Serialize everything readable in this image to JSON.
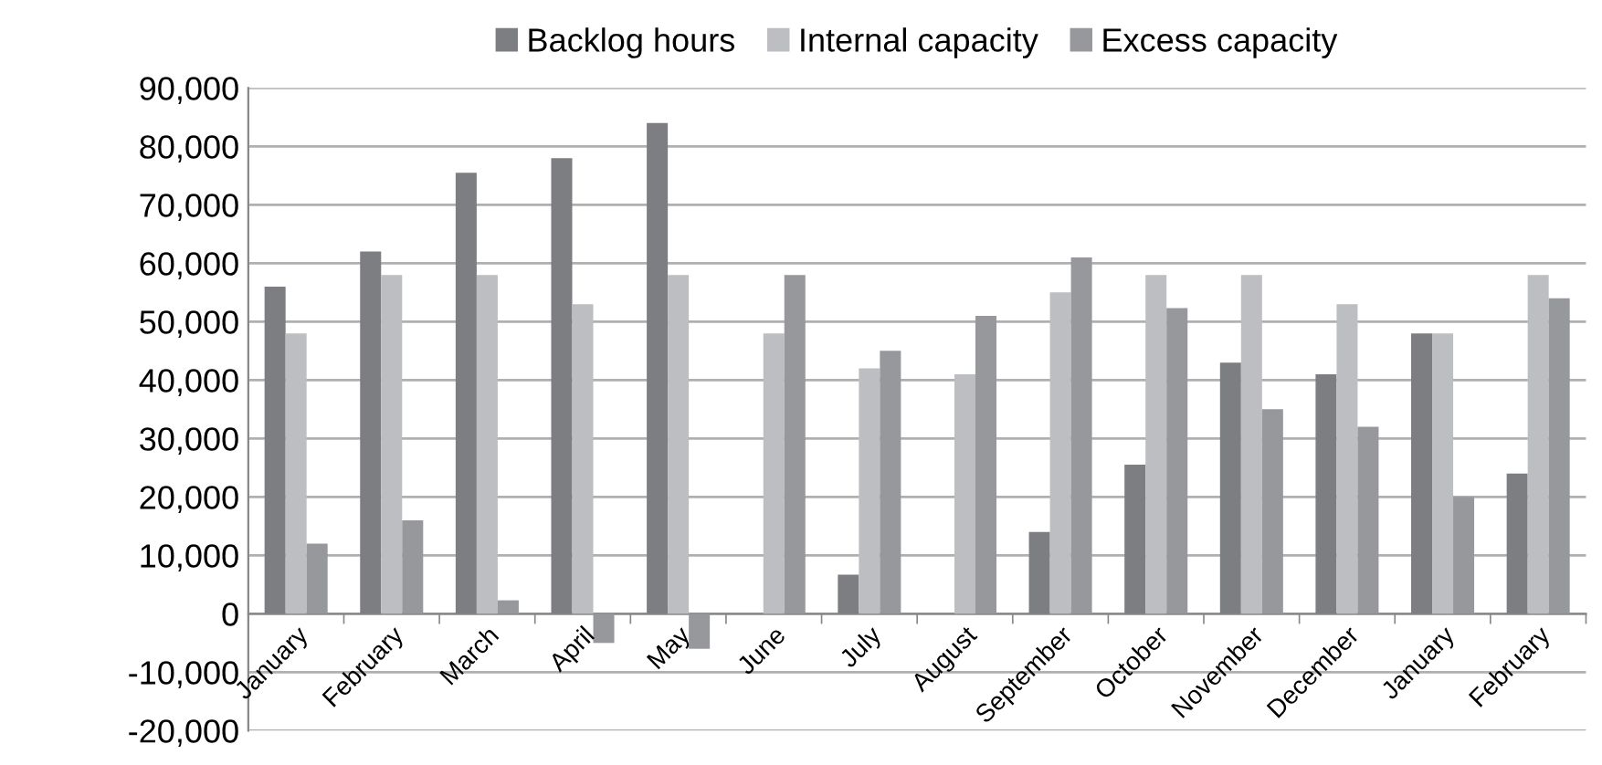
{
  "chart_data": {
    "type": "bar",
    "categories": [
      "January",
      "February",
      "March",
      "April",
      "May",
      "June",
      "July",
      "August",
      "September",
      "October",
      "November",
      "December",
      "January",
      "February"
    ],
    "series": [
      {
        "name": "Backlog hours",
        "color": "#7d7e82",
        "values": [
          56000,
          62000,
          75500,
          78000,
          84000,
          0,
          6700,
          0,
          14000,
          25500,
          43000,
          41000,
          48000,
          24000
        ]
      },
      {
        "name": "Internal capacity",
        "color": "#bdbec2",
        "values": [
          48000,
          58000,
          58000,
          53000,
          58000,
          48000,
          42000,
          41000,
          55000,
          58000,
          58000,
          53000,
          48000,
          58000
        ]
      },
      {
        "name": "Excess capacity",
        "color": "#97989c",
        "values": [
          12000,
          16000,
          2300,
          -5000,
          -6000,
          58000,
          45000,
          51000,
          61000,
          52300,
          35000,
          32000,
          20000,
          54000
        ]
      }
    ],
    "ylim": [
      -20000,
      90000
    ],
    "yticks": [
      {
        "value": -20000,
        "label": "-20,000"
      },
      {
        "value": -10000,
        "label": "-10,000"
      },
      {
        "value": 0,
        "label": "0"
      },
      {
        "value": 10000,
        "label": "10,000"
      },
      {
        "value": 20000,
        "label": "20,000"
      },
      {
        "value": 30000,
        "label": "30,000"
      },
      {
        "value": 40000,
        "label": "40,000"
      },
      {
        "value": 50000,
        "label": "50,000"
      },
      {
        "value": 60000,
        "label": "60,000"
      },
      {
        "value": 70000,
        "label": "70,000"
      },
      {
        "value": 80000,
        "label": "80,000"
      },
      {
        "value": 90000,
        "label": "90,000"
      }
    ],
    "grid": "y",
    "legend": "top"
  }
}
